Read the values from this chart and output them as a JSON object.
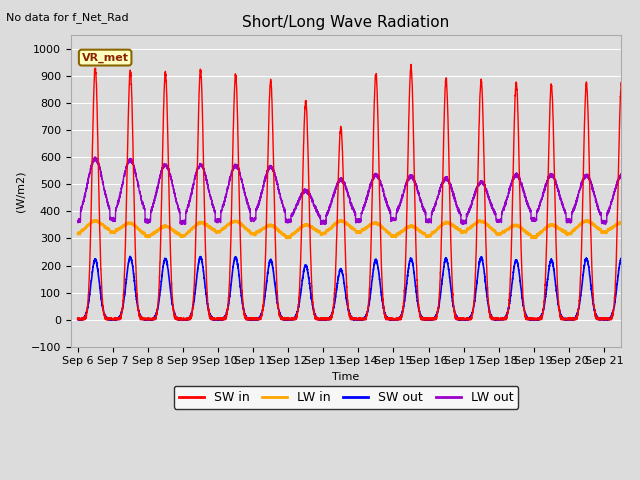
{
  "title": "Short/Long Wave Radiation",
  "xlabel": "Time",
  "ylabel": "(W/m2)",
  "top_left_text": "No data for f_Net_Rad",
  "legend_label": "VR_met",
  "ylim": [
    -100,
    1050
  ],
  "xtick_labels": [
    "Sep 6",
    "Sep 7",
    "Sep 8",
    "Sep 9",
    "Sep 10",
    "Sep 11",
    "Sep 12",
    "Sep 13",
    "Sep 14",
    "Sep 15",
    "Sep 16",
    "Sep 17",
    "Sep 18",
    "Sep 19",
    "Sep 20",
    "Sep 21"
  ],
  "series_colors": {
    "SW_in": "#FF0000",
    "LW_in": "#FFA500",
    "SW_out": "#0000FF",
    "LW_out": "#9900CC"
  },
  "legend_entries": [
    "SW in",
    "LW in",
    "SW out",
    "LW out"
  ],
  "background_color": "#DCDCDC",
  "grid_color": "#FFFFFF",
  "n_days": 16,
  "sw_in_peaks": [
    930,
    918,
    910,
    920,
    905,
    880,
    805,
    710,
    910,
    935,
    890,
    885,
    875,
    865,
    870,
    870
  ],
  "sw_out_peaks": [
    222,
    230,
    225,
    230,
    230,
    220,
    200,
    185,
    220,
    225,
    225,
    230,
    220,
    220,
    225,
    225
  ],
  "lw_in_base": 315,
  "lw_in_day_amp": 40,
  "lw_out_base": 365,
  "lw_out_peaks": [
    590,
    585,
    575,
    575,
    565,
    560,
    480,
    520,
    530,
    525,
    525,
    510,
    530,
    530,
    535,
    535
  ]
}
